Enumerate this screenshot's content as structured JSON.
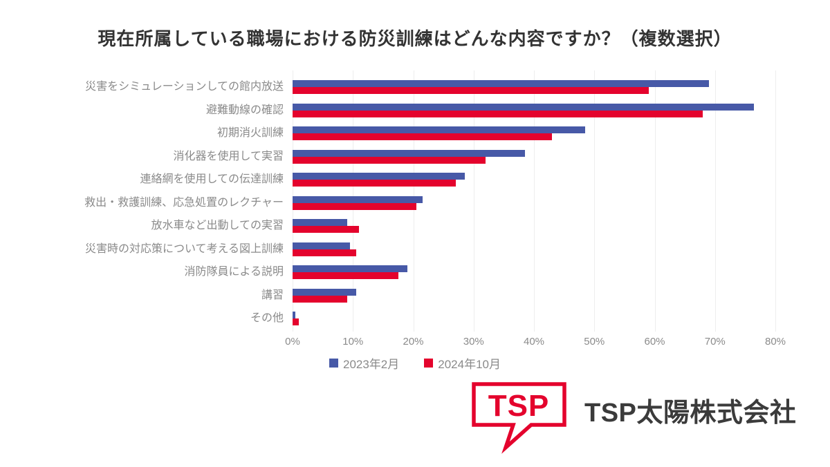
{
  "title": "現在所属している職場における防災訓練はどんな内容ですか？（複数選択）",
  "chart_data": {
    "type": "bar",
    "orientation": "horizontal",
    "title": "現在所属している職場における防災訓練はどんな内容ですか？（複数選択）",
    "categories": [
      "災害をシミュレーションしての館内放送",
      "避難動線の確認",
      "初期消火訓練",
      "消化器を使用して実習",
      "連絡網を使用しての伝達訓練",
      "救出・救護訓練、応急処置のレクチャー",
      "放水車など出動しての実習",
      "災害時の対応策について考える図上訓練",
      "消防隊員による説明",
      "講習",
      "その他"
    ],
    "series": [
      {
        "name": "2023年2月",
        "color": "#4759a7",
        "values": [
          69,
          76.5,
          48.5,
          38.5,
          28.5,
          21.5,
          9,
          9.5,
          19,
          10.5,
          0.5
        ]
      },
      {
        "name": "2024年10月",
        "color": "#e4032d",
        "values": [
          59,
          68,
          43,
          32,
          27,
          20.5,
          11,
          10.5,
          17.5,
          9,
          1
        ]
      }
    ],
    "xlabel": "",
    "ylabel": "",
    "axis": {
      "min": 0,
      "max": 80,
      "step": 10,
      "tick_labels": [
        "0%",
        "10%",
        "20%",
        "30%",
        "40%",
        "50%",
        "60%",
        "70%",
        "80%"
      ]
    },
    "grid": true,
    "legend_position": "bottom-center"
  },
  "logo": {
    "bubble_text": "TSP",
    "company_name": "TSP太陽株式会社",
    "brand_red": "#e4032d"
  },
  "colors": {
    "background": "#ffffff",
    "title_text": "#333333",
    "label_text": "#8a8a8a",
    "gridline": "#ededed",
    "series_blue": "#4759a7",
    "series_red": "#e4032d",
    "company_text": "#3b3b3b"
  }
}
